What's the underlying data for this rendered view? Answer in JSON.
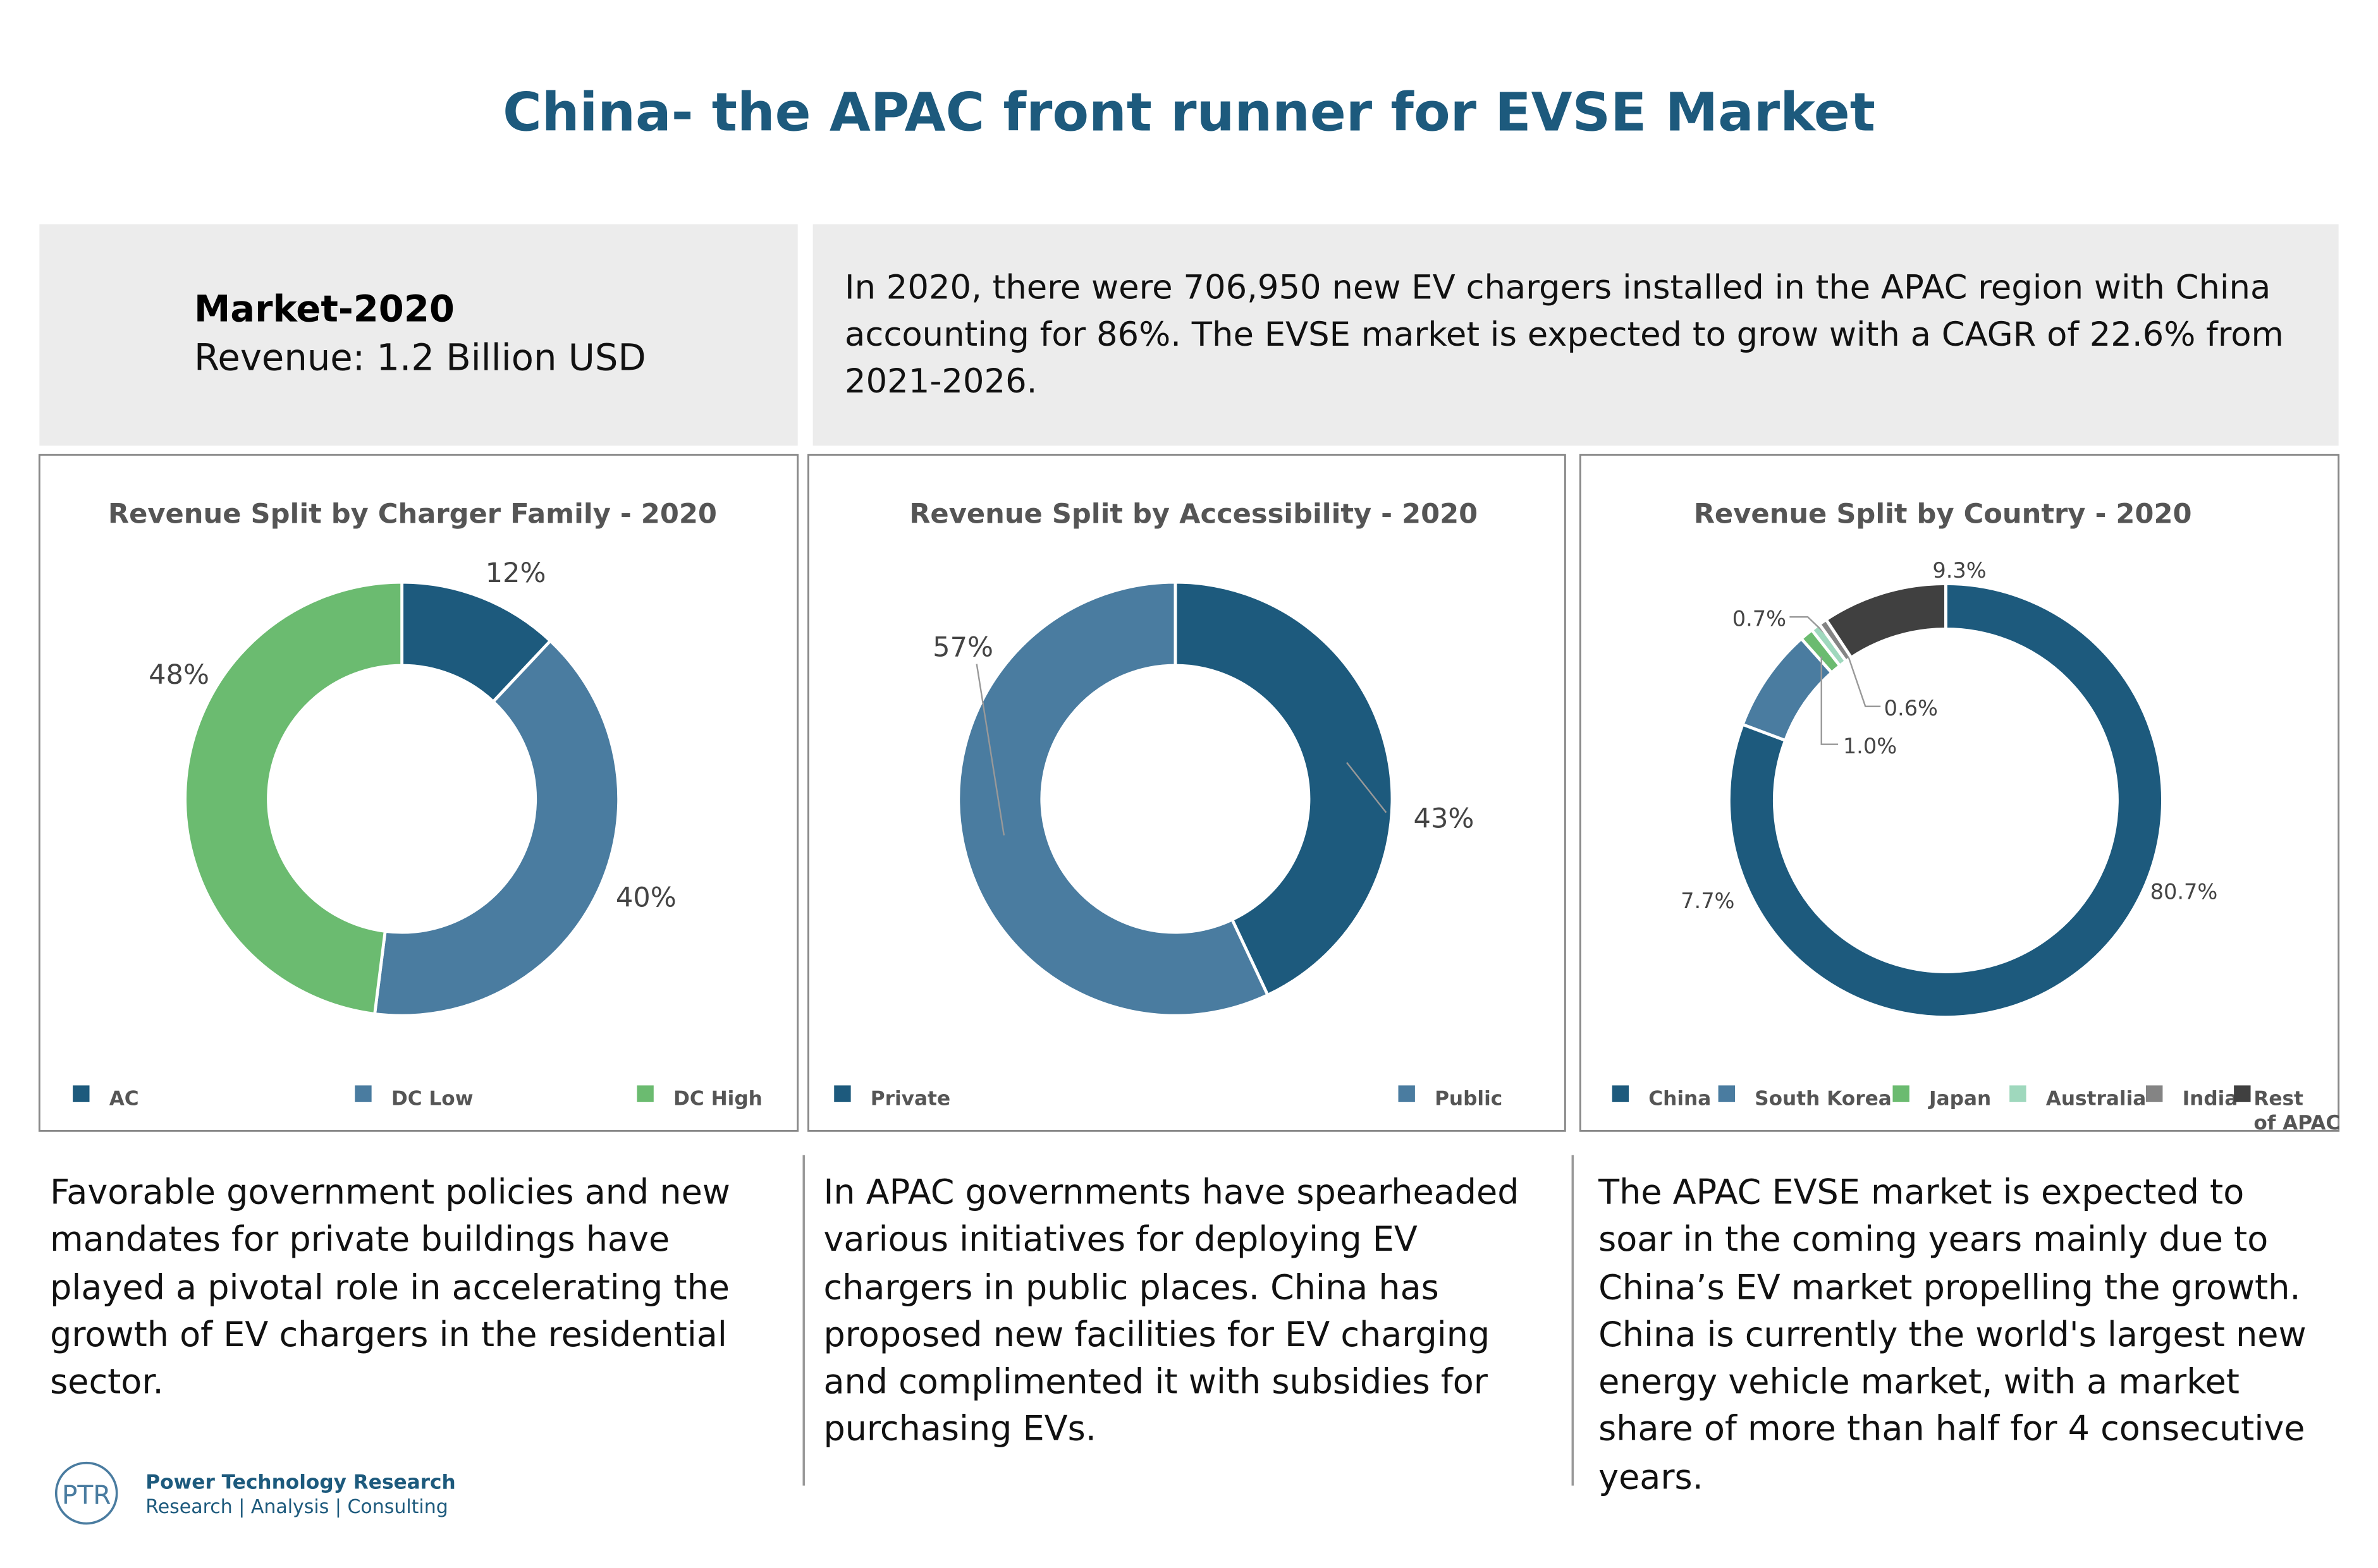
{
  "header": {
    "title": "China- the APAC front runner for EVSE Market"
  },
  "market": {
    "label": "Market-2020",
    "revenue": "Revenue: 1.2 Billion USD"
  },
  "summary": "In 2020, there were 706,950 new EV chargers installed in the APAC region with China accounting for 86%. The EVSE market is expected to grow with a CAGR of 22.6% from 2021-2026.",
  "chart_data": [
    {
      "type": "pie",
      "title": "Revenue Split by Charger Family - 2020",
      "categories": [
        "AC",
        "DC Low",
        "DC High"
      ],
      "values": [
        12,
        40,
        48
      ],
      "value_labels": [
        "12%",
        "40%",
        "48%"
      ],
      "colors": [
        "#1d5a7d",
        "#4a7ca0",
        "#6bbb70"
      ]
    },
    {
      "type": "pie",
      "title": "Revenue Split by Accessibility - 2020",
      "categories": [
        "Private",
        "Public"
      ],
      "values": [
        43,
        57
      ],
      "value_labels": [
        "43%",
        "57%"
      ],
      "colors": [
        "#1d5a7d",
        "#4a7ca0"
      ]
    },
    {
      "type": "pie",
      "title": "Revenue Split by Country - 2020",
      "categories": [
        "China",
        "South Korea",
        "Japan",
        "Australia",
        "India",
        "Rest of APAC"
      ],
      "values": [
        80.7,
        7.7,
        1.0,
        0.7,
        0.6,
        9.3
      ],
      "value_labels": [
        "80.7%",
        "7.7%",
        "1.0%",
        "0.7%",
        "0.6%",
        "9.3%"
      ],
      "colors": [
        "#1d5a7d",
        "#4a7ca0",
        "#6bbb70",
        "#9fd8bd",
        "#848484",
        "#404040"
      ]
    }
  ],
  "notes": [
    "Favorable government policies and new mandates for private buildings have played a pivotal role in accelerating the growth of EV chargers in the residential sector.",
    "In APAC governments have spearheaded various initiatives for deploying EV chargers in public places. China has proposed new  facilities for EV charging and complimented it with subsidies for purchasing EVs.",
    "The APAC EVSE market is expected to soar in the coming years mainly due to China’s EV market propelling the growth. China is currently the world's largest new energy vehicle market, with a market share of more than half for 4 consecutive years."
  ],
  "logo": {
    "mark": "PTR",
    "name": "Power Technology Research",
    "tagline": "Research | Analysis | Consulting"
  }
}
